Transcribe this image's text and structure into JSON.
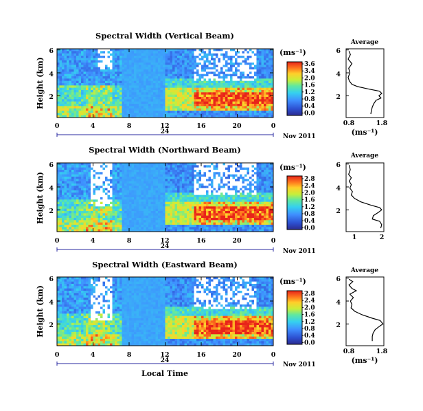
{
  "xlabel": "Local Time",
  "date_label": "Nov 2011",
  "day_marker": "24",
  "chart_data": [
    {
      "type": "heatmap",
      "title": "Spectral Width (Vertical Beam)",
      "ylabel": "Height (km)",
      "x_ticks": [
        "0",
        "4",
        "8",
        "12",
        "16",
        "20",
        "0"
      ],
      "y_ticks": [
        "2",
        "4",
        "6"
      ],
      "xlim": [
        0,
        24
      ],
      "ylim": [
        0.1,
        6.1
      ],
      "colorbar": {
        "unit": "(ms⁻¹)",
        "ticks": [
          "3.6",
          "3.4",
          "2.0",
          "1.6",
          "1.2",
          "0.8",
          "0.4",
          "0.0"
        ],
        "range": [
          0.0,
          3.6
        ]
      },
      "profile": {
        "title": "Average",
        "xlabel": "(ms⁻¹)",
        "x_ticks": [
          "0.8",
          "1.8"
        ],
        "y_ticks": [
          "2",
          "4",
          "6"
        ],
        "xlim": [
          0.55,
          1.85
        ],
        "ylim": [
          0.1,
          6.1
        ],
        "points": [
          [
            0.65,
            5.9
          ],
          [
            0.7,
            5.6
          ],
          [
            0.62,
            5.2
          ],
          [
            0.75,
            4.8
          ],
          [
            0.64,
            4.4
          ],
          [
            0.68,
            4.0
          ],
          [
            0.62,
            3.6
          ],
          [
            0.66,
            3.3
          ],
          [
            0.75,
            3.0
          ],
          [
            0.95,
            2.8
          ],
          [
            1.3,
            2.6
          ],
          [
            1.7,
            2.4
          ],
          [
            1.78,
            2.2
          ],
          [
            1.68,
            2.0
          ],
          [
            1.75,
            1.8
          ],
          [
            1.58,
            1.6
          ],
          [
            1.5,
            1.3
          ],
          [
            1.45,
            1.0
          ],
          [
            1.42,
            0.7
          ],
          [
            1.4,
            0.4
          ]
        ]
      }
    },
    {
      "type": "heatmap",
      "title": "Spectral Width (Northward Beam)",
      "ylabel": "Height (km)",
      "x_ticks": [
        "0",
        "4",
        "8",
        "12",
        "16",
        "20",
        "0"
      ],
      "y_ticks": [
        "2",
        "4",
        "6"
      ],
      "xlim": [
        0,
        24
      ],
      "ylim": [
        0.1,
        6.1
      ],
      "colorbar": {
        "unit": "(ms⁻¹)",
        "ticks": [
          "2.8",
          "2.4",
          "2.0",
          "1.6",
          "1.2",
          "0.8",
          "0.4",
          "0.0"
        ],
        "range": [
          0.0,
          2.8
        ]
      },
      "profile": {
        "title": "Average",
        "xlabel": "",
        "x_ticks": [
          "1",
          "2"
        ],
        "y_ticks": [
          "2",
          "4",
          "6"
        ],
        "xlim": [
          0.3,
          2.1
        ],
        "ylim": [
          0.1,
          6.1
        ],
        "points": [
          [
            0.45,
            5.9
          ],
          [
            0.5,
            5.5
          ],
          [
            0.42,
            5.1
          ],
          [
            0.55,
            4.8
          ],
          [
            0.45,
            4.5
          ],
          [
            0.55,
            4.2
          ],
          [
            0.48,
            3.9
          ],
          [
            0.6,
            3.6
          ],
          [
            0.55,
            3.3
          ],
          [
            0.7,
            3.0
          ],
          [
            1.0,
            2.7
          ],
          [
            1.5,
            2.4
          ],
          [
            1.9,
            2.2
          ],
          [
            2.0,
            2.0
          ],
          [
            1.85,
            1.8
          ],
          [
            1.6,
            1.5
          ],
          [
            1.55,
            1.2
          ],
          [
            1.9,
            1.0
          ],
          [
            2.0,
            0.7
          ],
          [
            1.95,
            0.4
          ]
        ]
      }
    },
    {
      "type": "heatmap",
      "title": "Spectral Width (Eastward Beam)",
      "ylabel": "Height (km)",
      "x_ticks": [
        "0",
        "4",
        "8",
        "12",
        "16",
        "20",
        "0"
      ],
      "y_ticks": [
        "2",
        "4",
        "6"
      ],
      "xlim": [
        0,
        24
      ],
      "ylim": [
        0.1,
        6.1
      ],
      "colorbar": {
        "unit": "(ms⁻¹)",
        "ticks": [
          "2.8",
          "2.4",
          "2.0",
          "1.6",
          "1.2",
          "0.8",
          "0.4",
          "0.0"
        ],
        "range": [
          0.0,
          2.8
        ]
      },
      "profile": {
        "title": "Average",
        "xlabel": "(ms⁻¹)",
        "x_ticks": [
          "0.8",
          "1.8"
        ],
        "y_ticks": [
          "2",
          "4",
          "6"
        ],
        "xlim": [
          0.55,
          1.85
        ],
        "ylim": [
          0.1,
          6.1
        ],
        "points": [
          [
            0.65,
            5.9
          ],
          [
            0.78,
            5.7
          ],
          [
            0.65,
            5.4
          ],
          [
            0.75,
            5.1
          ],
          [
            0.9,
            4.9
          ],
          [
            0.68,
            4.6
          ],
          [
            0.8,
            4.3
          ],
          [
            0.7,
            4.0
          ],
          [
            0.75,
            3.7
          ],
          [
            0.72,
            3.4
          ],
          [
            0.85,
            3.1
          ],
          [
            1.1,
            2.8
          ],
          [
            1.45,
            2.5
          ],
          [
            1.72,
            2.3
          ],
          [
            1.82,
            2.0
          ],
          [
            1.7,
            1.8
          ],
          [
            1.55,
            1.5
          ],
          [
            1.48,
            1.2
          ],
          [
            1.45,
            0.9
          ],
          [
            1.45,
            0.5
          ]
        ]
      }
    }
  ]
}
